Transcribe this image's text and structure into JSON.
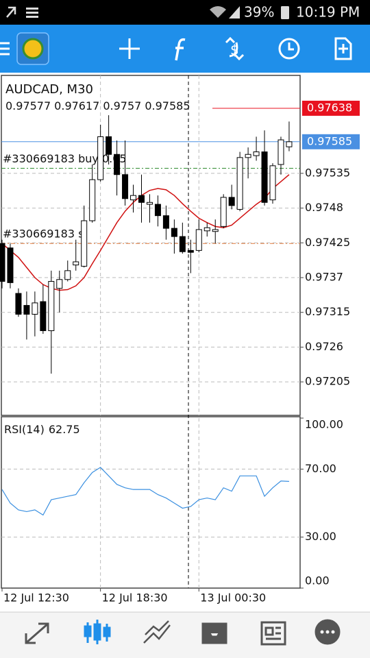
{
  "status_bar": {
    "battery": "39%",
    "time": "10:19 PM"
  },
  "chart_data": {
    "type": "candlestick",
    "title": "AUDCAD, M30",
    "categories": [
      "12 Jul 12:30",
      null,
      null,
      null,
      null,
      null,
      null,
      null,
      null,
      null,
      null,
      null,
      "12 Jul 18:30",
      null,
      null,
      null,
      null,
      null,
      null,
      null,
      null,
      null,
      null,
      null,
      "13 Jul 00:30",
      null,
      null,
      null,
      null,
      null,
      null,
      null,
      null,
      null,
      null,
      null
    ],
    "open": [
      0.97424,
      0.97417,
      0.97345,
      0.97326,
      0.97312,
      0.97332,
      0.97286,
      0.97353,
      0.97367,
      0.9739,
      0.97388,
      0.9746,
      0.97525,
      0.97593,
      0.97565,
      0.97533,
      0.97493,
      0.975,
      0.97486,
      0.97486,
      0.97468,
      0.97448,
      0.97435,
      0.97413,
      0.97413,
      0.97444,
      0.97443,
      0.97451,
      0.97497,
      0.97478,
      0.9756,
      0.97563,
      0.97569,
      0.97493,
      0.97549,
      0.97577
    ],
    "high": [
      0.9743,
      0.97424,
      0.97353,
      0.97348,
      0.97348,
      0.97359,
      0.97381,
      0.97381,
      0.97397,
      0.9743,
      0.97484,
      0.97549,
      0.97612,
      0.97627,
      0.97587,
      0.97587,
      0.97517,
      0.97533,
      0.97502,
      0.975,
      0.97484,
      0.97462,
      0.97457,
      0.9743,
      0.97462,
      0.97457,
      0.97462,
      0.97502,
      0.97517,
      0.97569,
      0.97576,
      0.97593,
      0.97603,
      0.97551,
      0.97593,
      0.97617
    ],
    "low": [
      0.97353,
      0.97353,
      0.97308,
      0.97272,
      0.97277,
      0.97281,
      0.97218,
      0.97315,
      0.97364,
      0.97381,
      0.97386,
      0.97457,
      0.97522,
      0.97549,
      0.975,
      0.97484,
      0.97473,
      0.97457,
      0.97457,
      0.97451,
      0.9743,
      0.97408,
      0.97408,
      0.97377,
      0.9741,
      0.97435,
      0.97424,
      0.97448,
      0.97478,
      0.97475,
      0.97527,
      0.97555,
      0.97484,
      0.97487,
      0.97533,
      0.9757
    ],
    "close": [
      0.97364,
      0.97362,
      0.97312,
      0.97312,
      0.9733,
      0.97286,
      0.97364,
      0.97367,
      0.97381,
      0.97395,
      0.9746,
      0.97525,
      0.97593,
      0.97565,
      0.97533,
      0.97495,
      0.975,
      0.97489,
      0.97489,
      0.97468,
      0.97448,
      0.97435,
      0.97411,
      0.9741,
      0.97446,
      0.97449,
      0.97446,
      0.97497,
      0.97484,
      0.9756,
      0.97565,
      0.97569,
      0.97489,
      0.97547,
      0.97588,
      0.97585
    ],
    "ylim": [
      0.97152,
      0.9769
    ],
    "yticks": [
      0.97535,
      0.9748,
      0.97425,
      0.9737,
      0.97315,
      0.9726,
      0.97205
    ],
    "moving_average": {
      "color": "#d01010",
      "values": [
        0.97424,
        0.97413,
        0.97402,
        0.97386,
        0.9737,
        0.97359,
        0.97353,
        0.9735,
        0.97351,
        0.97357,
        0.9737,
        0.97392,
        0.97413,
        0.97435,
        0.97457,
        0.97475,
        0.97489,
        0.975,
        0.97508,
        0.97511,
        0.97509,
        0.975,
        0.97487,
        0.97475,
        0.97464,
        0.97457,
        0.97451,
        0.97449,
        0.97453,
        0.97464,
        0.97475,
        0.97486,
        0.97495,
        0.97511,
        0.97522,
        0.97533
      ]
    },
    "bid_color": "#4a90e2",
    "ask": {
      "value": 0.97638,
      "color": "#e8121f"
    },
    "orders": [
      {
        "label": "#330669183 buy 0.05",
        "price": 0.97543,
        "color": "#2e8b2e"
      },
      {
        "label": "#330669183 sl",
        "price": 0.97424,
        "color": "#e0783a"
      }
    ],
    "grid": true,
    "rsi": {
      "type": "line",
      "title": "RSI(14)",
      "color": "#3a8fe0",
      "values": [
        58,
        50,
        46,
        45,
        46,
        43,
        52,
        53,
        54,
        55,
        62,
        68,
        71,
        66,
        61,
        59,
        58,
        58,
        58,
        55,
        53,
        50,
        47,
        48,
        52,
        53,
        52,
        59,
        57,
        66,
        66,
        66,
        54,
        59,
        63,
        62.75
      ],
      "ylim": [
        0,
        100
      ],
      "yticks": [
        {
          "value": 100,
          "label": "100.00"
        },
        {
          "value": 70,
          "label": "70.00"
        },
        {
          "value": 30,
          "label": "30.00"
        },
        {
          "value": 0,
          "label": "0.00"
        }
      ]
    }
  }
}
